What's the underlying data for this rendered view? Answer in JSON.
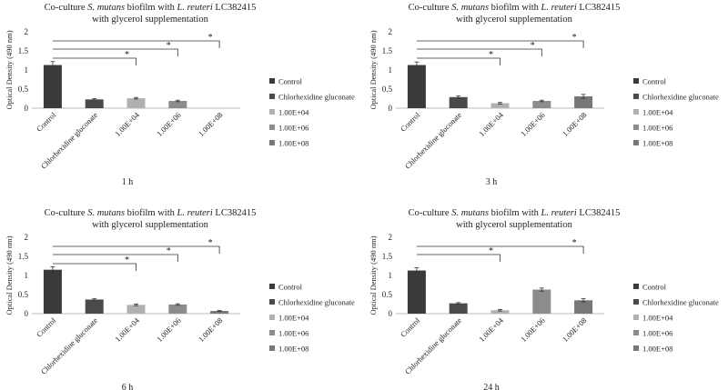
{
  "chart_data": [
    {
      "type": "bar",
      "title": "Co-culture S. mutans biofilm with L. reuteri LC382415",
      "title_italic_parts": [
        "S. mutans",
        "L. reuteri"
      ],
      "subtitle": "with glycerol supplementation",
      "caption": "1 h",
      "ylabel": "Optical Density (490 nm)",
      "xlabel": "",
      "ylim": [
        0,
        2
      ],
      "yticks": [
        "0",
        "0.5",
        "1",
        "1.5",
        "2"
      ],
      "grid": false,
      "legend_position": "right",
      "categories": [
        "Control",
        "Chlorhexidine gluconate",
        "1.00E+04",
        "1.00E+06",
        "1.00E+08"
      ],
      "values": [
        1.13,
        0.23,
        0.26,
        0.19,
        0
      ],
      "errors": [
        0.09,
        0.02,
        0.02,
        0.02,
        0
      ],
      "colors": [
        "#3a3a3a",
        "#4a4a4a",
        "#b0b0b0",
        "#8c8c8c",
        "#777777"
      ],
      "significance": [
        {
          "from": "Control",
          "to": "1.00E+04",
          "label": "*"
        },
        {
          "from": "Control",
          "to": "1.00E+06",
          "label": "*"
        },
        {
          "from": "Control",
          "to": "1.00E+08",
          "label": "*"
        }
      ]
    },
    {
      "type": "bar",
      "title": "Co-culture S. mutans biofilm with L. reuteri LC382415",
      "title_italic_parts": [
        "S. mutans",
        "L. reuteri"
      ],
      "subtitle": "with glycerol supplementation",
      "caption": "3 h",
      "ylabel": "Optical Density (490 nm)",
      "xlabel": "",
      "ylim": [
        0,
        2
      ],
      "yticks": [
        "0",
        "0.5",
        "1",
        "1.5",
        "2"
      ],
      "grid": false,
      "legend_position": "right",
      "categories": [
        "Control",
        "Chlorhexidine gluconate",
        "1.00E+04",
        "1.00E+06",
        "1.00E+08"
      ],
      "values": [
        1.13,
        0.29,
        0.13,
        0.19,
        0.31
      ],
      "errors": [
        0.08,
        0.03,
        0.02,
        0.02,
        0.05
      ],
      "colors": [
        "#3a3a3a",
        "#4a4a4a",
        "#b0b0b0",
        "#8c8c8c",
        "#777777"
      ],
      "significance": [
        {
          "from": "Control",
          "to": "1.00E+04",
          "label": "*"
        },
        {
          "from": "Control",
          "to": "1.00E+06",
          "label": "*"
        },
        {
          "from": "Control",
          "to": "1.00E+08",
          "label": "*"
        }
      ]
    },
    {
      "type": "bar",
      "title": "Co-culture S. mutans biofilm with L. reuteri LC382415",
      "title_italic_parts": [
        "S. mutans",
        "L. reuteri"
      ],
      "subtitle": "with glycerol supplementation",
      "caption": "6 h",
      "ylabel": "Optical Density (490 nm)",
      "xlabel": "",
      "ylim": [
        0,
        2
      ],
      "yticks": [
        "0",
        "0.5",
        "1",
        "1.5",
        "2"
      ],
      "grid": false,
      "legend_position": "right",
      "categories": [
        "Control",
        "Chlorhexidine gluconate",
        "1.00E+04",
        "1.00E+06",
        "1.00E+08"
      ],
      "values": [
        1.15,
        0.37,
        0.23,
        0.24,
        0.07
      ],
      "errors": [
        0.08,
        0.02,
        0.02,
        0.02,
        0.01
      ],
      "colors": [
        "#3a3a3a",
        "#4a4a4a",
        "#b0b0b0",
        "#8c8c8c",
        "#777777"
      ],
      "significance": [
        {
          "from": "Control",
          "to": "1.00E+04",
          "label": "*"
        },
        {
          "from": "Control",
          "to": "1.00E+06",
          "label": "*"
        },
        {
          "from": "Control",
          "to": "1.00E+08",
          "label": "*"
        }
      ]
    },
    {
      "type": "bar",
      "title": "Co-culture S. mutans biofilm with L. reuteri LC382415",
      "title_italic_parts": [
        "S. mutans",
        "L. reuteri"
      ],
      "subtitle": "with glycerol supplementation",
      "caption": "24 h",
      "ylabel": "Optical Density (490 nm)",
      "xlabel": "",
      "ylim": [
        0,
        2
      ],
      "yticks": [
        "0",
        "0.5",
        "1",
        "1.5",
        "2"
      ],
      "grid": false,
      "legend_position": "right",
      "categories": [
        "Control",
        "Chlorhexidine gluconate",
        "1.00E+04",
        "1.00E+06",
        "1.00E+08"
      ],
      "values": [
        1.13,
        0.27,
        0.09,
        0.63,
        0.35
      ],
      "errors": [
        0.07,
        0.02,
        0.02,
        0.04,
        0.04
      ],
      "colors": [
        "#3a3a3a",
        "#4a4a4a",
        "#b0b0b0",
        "#8c8c8c",
        "#777777"
      ],
      "significance": [
        {
          "from": "Control",
          "to": "1.00E+04",
          "label": "*"
        },
        {
          "from": "Control",
          "to": "1.00E+08",
          "label": "*"
        }
      ]
    }
  ],
  "legend": {
    "entries": [
      "Control",
      "Chlorhexidine gluconate",
      "1.00E+04",
      "1.00E+06",
      "1.00E+08"
    ]
  }
}
